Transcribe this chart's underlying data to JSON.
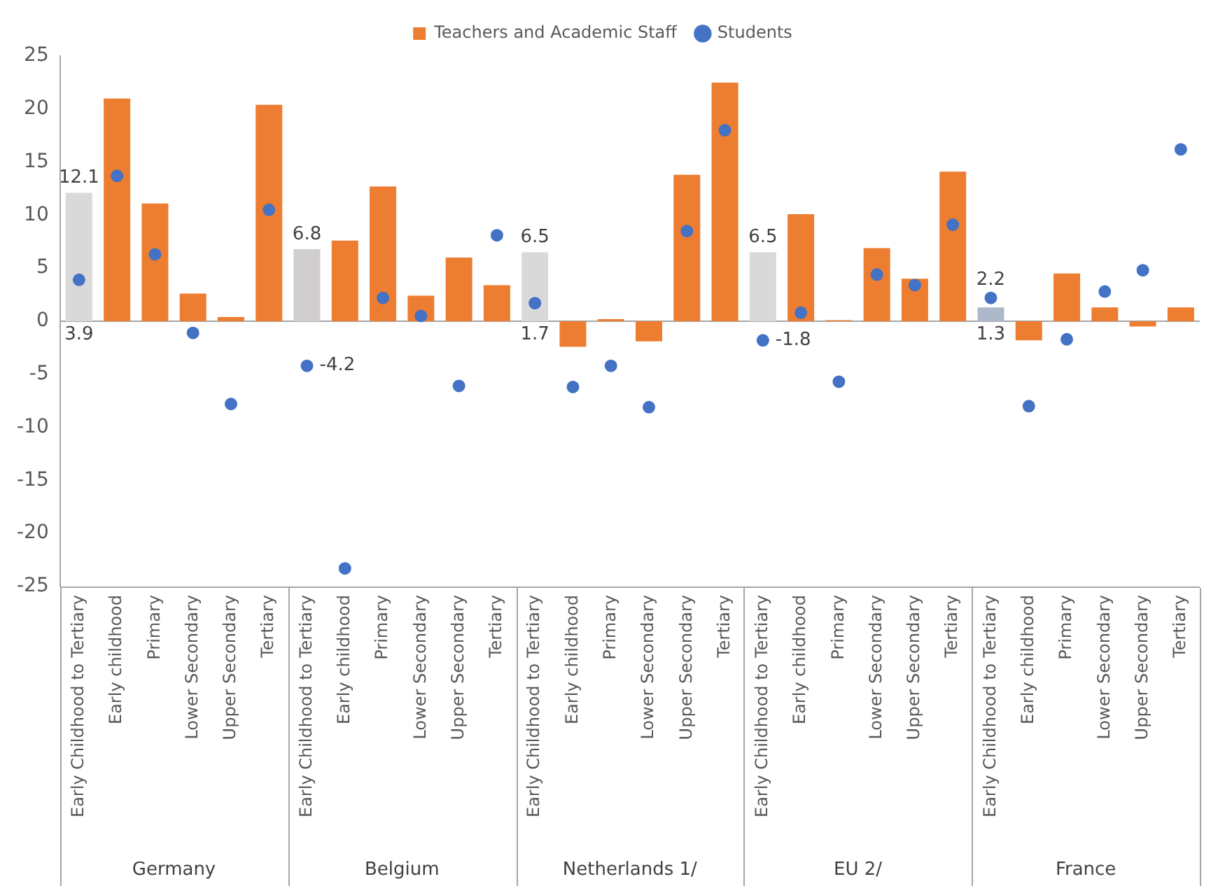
{
  "chart_data": {
    "type": "bar",
    "categories": [
      "Early Childhood to Tertiary",
      "Early childhood",
      "Primary",
      "Lower Secondary",
      "Upper Secondary",
      "Tertiary",
      "Early Childhood to Tertiary",
      "Early childhood",
      "Primary",
      "Lower Secondary",
      "Upper Secondary",
      "Tertiary",
      "Early Childhood to Tertiary",
      "Early childhood",
      "Primary",
      "Lower Secondary",
      "Upper Secondary",
      "Tertiary",
      "Early Childhood to Tertiary",
      "Early childhood",
      "Primary",
      "Lower Secondary",
      "Upper Secondary",
      "Tertiary",
      "Early Childhood to Tertiary",
      "Early childhood",
      "Primary",
      "Lower Secondary",
      "Upper Secondary",
      "Tertiary"
    ],
    "series": [
      {
        "name": "Teachers and Academic Staff",
        "color": "#ed7d31",
        "colors": [
          "#d9d9d9",
          "#ed7d31",
          "#ed7d31",
          "#ed7d31",
          "#ed7d31",
          "#ed7d31",
          "#d0cece",
          "#ed7d31",
          "#ed7d31",
          "#ed7d31",
          "#ed7d31",
          "#ed7d31",
          "#d9d9d9",
          "#ed7d31",
          "#ed7d31",
          "#ed7d31",
          "#ed7d31",
          "#ed7d31",
          "#d9d9d9",
          "#ed7d31",
          "#ed7d31",
          "#ed7d31",
          "#ed7d31",
          "#ed7d31",
          "#adb9ca",
          "#ed7d31",
          "#ed7d31",
          "#ed7d31",
          "#ed7d31",
          "#ed7d31"
        ],
        "values": [
          12.1,
          21.0,
          11.1,
          2.6,
          0.4,
          20.4,
          6.8,
          7.6,
          12.7,
          2.4,
          6.0,
          3.4,
          6.5,
          -2.4,
          0.2,
          -1.9,
          13.8,
          22.5,
          6.5,
          10.1,
          0.1,
          6.9,
          4.0,
          14.1,
          1.3,
          -1.8,
          4.5,
          1.3,
          -0.5,
          1.3
        ],
        "value_labels": [
          "12.1",
          null,
          null,
          null,
          null,
          null,
          "6.8",
          null,
          null,
          null,
          null,
          null,
          "6.5",
          null,
          null,
          null,
          null,
          null,
          "6.5",
          null,
          null,
          null,
          null,
          null,
          "1.3",
          null,
          null,
          null,
          null,
          null
        ]
      },
      {
        "name": "Students",
        "type": "scatter",
        "color": "#4472c4",
        "values": [
          3.9,
          13.7,
          6.3,
          -1.1,
          -7.8,
          10.5,
          -4.2,
          -23.3,
          2.2,
          0.5,
          -6.1,
          8.1,
          1.7,
          -6.2,
          -4.2,
          -8.1,
          8.5,
          18.0,
          -1.8,
          0.8,
          -5.7,
          4.4,
          3.4,
          9.1,
          2.2,
          -8.0,
          -1.7,
          2.8,
          4.8,
          16.2
        ],
        "value_labels": [
          "3.9",
          null,
          null,
          null,
          null,
          null,
          "-4.2",
          null,
          null,
          null,
          null,
          null,
          "1.7",
          null,
          null,
          null,
          null,
          null,
          "-1.8",
          null,
          null,
          null,
          null,
          null,
          "2.2",
          null,
          null,
          null,
          null,
          null
        ]
      }
    ],
    "annotations": [
      "Germany",
      "Belgium",
      "Netherlands 1/",
      "EU 2/",
      "France"
    ],
    "ylim": [
      -25,
      25
    ],
    "yticks": [
      -25,
      -20,
      -15,
      -10,
      -5,
      0,
      5,
      10,
      15,
      20,
      25
    ],
    "ref_lines": [
      {
        "axis": "y",
        "value": 0,
        "color": "#a6a6a6"
      }
    ],
    "grid": false,
    "legend": "top",
    "marker": "circle"
  }
}
